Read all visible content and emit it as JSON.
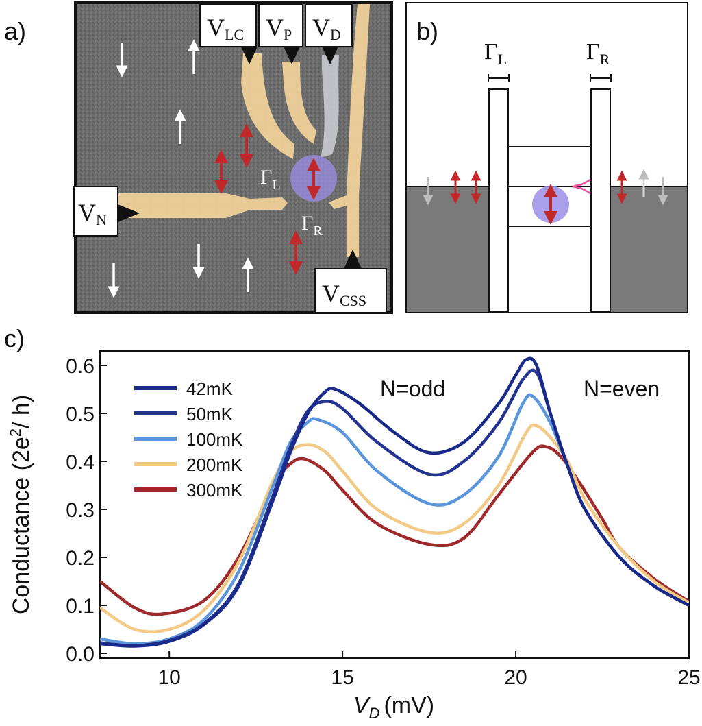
{
  "panel_a": {
    "label": "a)",
    "gates": {
      "lc": {
        "main": "V",
        "sub": "LC"
      },
      "p": {
        "main": "V",
        "sub": "P"
      },
      "d": {
        "main": "V",
        "sub": "D"
      },
      "n": {
        "main": "V",
        "sub": "N"
      },
      "css": {
        "main": "V",
        "sub": "CSS"
      }
    },
    "gamma_l": {
      "main": "Γ",
      "sub": "L"
    },
    "gamma_r": {
      "main": "Γ",
      "sub": "R"
    },
    "colors": {
      "gate": "#f3d39a",
      "gate_d": "#c9cbd1",
      "substrate": "#6e6e6e",
      "dot": "#9b8ee6",
      "arrow_red": "#c0282a",
      "arrow_white": "#ffffff"
    }
  },
  "panel_b": {
    "label": "b)",
    "gamma_l": {
      "main": "Γ",
      "sub": "L"
    },
    "gamma_r": {
      "main": "Γ",
      "sub": "R"
    },
    "colors": {
      "fill": "#7a7a7a",
      "dot": "#9b8ee6",
      "pink": "#e5559a",
      "gray_arrow": "#bdbdbd"
    }
  },
  "panel_c": {
    "label": "c)",
    "annotations": {
      "left": "N=odd",
      "right": "N=even"
    }
  },
  "chart_data": {
    "type": "line",
    "xlabel_var": "V",
    "xlabel_sub": "D",
    "xlabel_unit": "(mV)",
    "ylabel_pre": "Conductance (2e",
    "ylabel_sup": "2",
    "ylabel_post": "/ h)",
    "xlim": [
      8,
      25
    ],
    "ylim": [
      -0.01,
      0.63
    ],
    "xticks": [
      10,
      15,
      20,
      25
    ],
    "yticks": [
      0.0,
      0.1,
      0.2,
      0.3,
      0.4,
      0.5,
      0.6
    ],
    "ytick_labels": [
      "0.0",
      "0.1",
      "0.2",
      "0.3",
      "0.4",
      "0.5",
      "0.6"
    ],
    "legend_position": "top-left",
    "series": [
      {
        "name": "42mK",
        "color": "#1a2a8a",
        "x": [
          8,
          9,
          10,
          11,
          12,
          13,
          13.5,
          14,
          14.5,
          14.8,
          15.5,
          16.5,
          17.5,
          18.5,
          19.5,
          20,
          20.3,
          20.6,
          21,
          21.5,
          22,
          23,
          24,
          25
        ],
        "y": [
          0.02,
          0.015,
          0.025,
          0.06,
          0.14,
          0.32,
          0.42,
          0.5,
          0.545,
          0.55,
          0.52,
          0.46,
          0.418,
          0.44,
          0.52,
          0.58,
          0.612,
          0.6,
          0.5,
          0.39,
          0.3,
          0.2,
          0.14,
          0.1
        ]
      },
      {
        "name": "50mK",
        "color": "#23338f",
        "x": [
          8,
          9,
          10,
          11,
          12,
          13,
          13.5,
          14,
          14.5,
          15,
          16,
          17.5,
          18.5,
          19.5,
          20.2,
          20.6,
          21,
          21.5,
          22,
          23,
          24,
          25
        ],
        "y": [
          0.022,
          0.016,
          0.027,
          0.062,
          0.145,
          0.33,
          0.43,
          0.505,
          0.525,
          0.51,
          0.44,
          0.373,
          0.4,
          0.48,
          0.57,
          0.585,
          0.5,
          0.39,
          0.3,
          0.2,
          0.14,
          0.1
        ]
      },
      {
        "name": "100mK",
        "color": "#5b96dc",
        "x": [
          8,
          9,
          10,
          11,
          12,
          13,
          13.5,
          14,
          14.3,
          15,
          16,
          17.5,
          18.5,
          19.5,
          20.2,
          20.5,
          21,
          21.5,
          22,
          23,
          24,
          25
        ],
        "y": [
          0.03,
          0.02,
          0.03,
          0.07,
          0.17,
          0.35,
          0.44,
          0.482,
          0.487,
          0.46,
          0.38,
          0.312,
          0.33,
          0.41,
          0.52,
          0.535,
          0.48,
          0.39,
          0.3,
          0.2,
          0.14,
          0.1
        ]
      },
      {
        "name": "200mK",
        "color": "#f2c985",
        "x": [
          8,
          9,
          10,
          11,
          12,
          13,
          13.5,
          14,
          14.5,
          15,
          16,
          17.5,
          18.5,
          19.5,
          20.3,
          20.6,
          21,
          21.5,
          22,
          23,
          24,
          25
        ],
        "y": [
          0.095,
          0.05,
          0.05,
          0.09,
          0.19,
          0.36,
          0.42,
          0.435,
          0.42,
          0.38,
          0.3,
          0.252,
          0.27,
          0.35,
          0.46,
          0.474,
          0.45,
          0.4,
          0.32,
          0.22,
          0.15,
          0.105
        ]
      },
      {
        "name": "300mK",
        "color": "#9e2a2b",
        "x": [
          8,
          9,
          9.8,
          11,
          12,
          13,
          13.5,
          13.9,
          14.5,
          15,
          16,
          17.5,
          18.5,
          19.5,
          20.5,
          20.9,
          21.3,
          21.8,
          22.5,
          23,
          24,
          25
        ],
        "y": [
          0.15,
          0.095,
          0.082,
          0.11,
          0.2,
          0.35,
          0.395,
          0.405,
          0.38,
          0.34,
          0.27,
          0.227,
          0.24,
          0.33,
          0.42,
          0.43,
          0.41,
          0.36,
          0.28,
          0.22,
          0.155,
          0.108
        ]
      }
    ]
  }
}
